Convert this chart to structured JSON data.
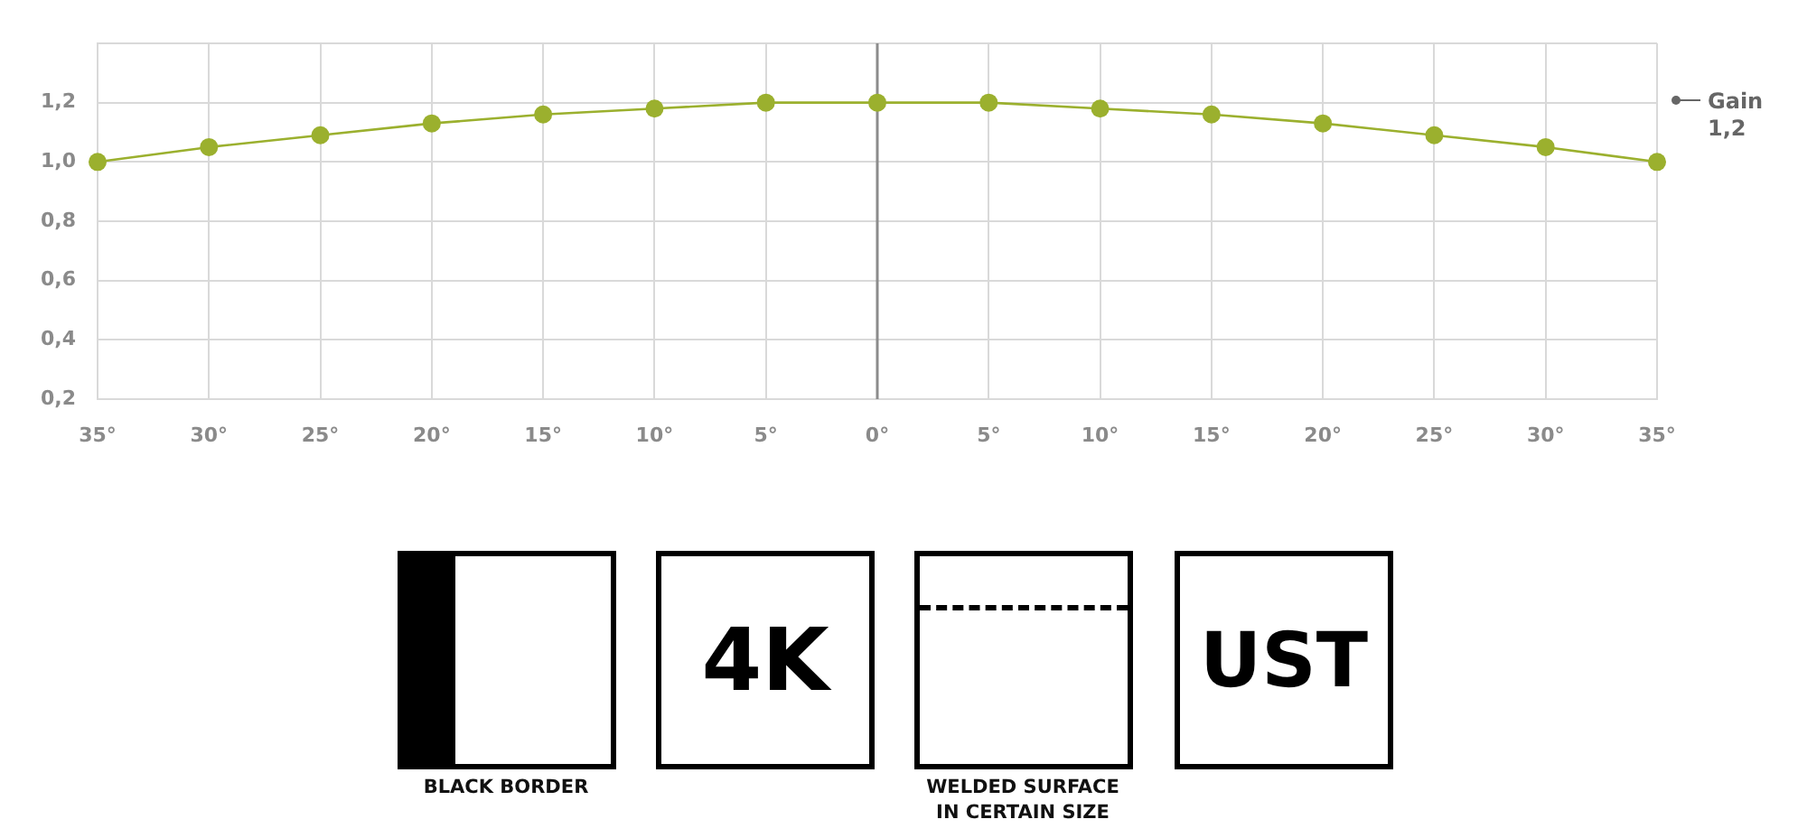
{
  "chart_data": {
    "type": "line",
    "categories": [
      "35°",
      "30°",
      "25°",
      "20°",
      "15°",
      "10°",
      "5°",
      "0°",
      "5°",
      "10°",
      "15°",
      "20°",
      "25°",
      "30°",
      "35°"
    ],
    "series": [
      {
        "color": "#9bb02e",
        "values": [
          1.0,
          1.05,
          1.09,
          1.13,
          1.16,
          1.18,
          1.2,
          1.2,
          1.2,
          1.18,
          1.16,
          1.13,
          1.09,
          1.05,
          1.0
        ]
      }
    ],
    "ylim": [
      0.2,
      1.4
    ],
    "yticks": [
      {
        "value": 0.2,
        "label": "0,2"
      },
      {
        "value": 0.4,
        "label": "0,4"
      },
      {
        "value": 0.6,
        "label": "0,6"
      },
      {
        "value": 0.8,
        "label": "0,8"
      },
      {
        "value": 1.0,
        "label": "1,0"
      },
      {
        "value": 1.2,
        "label": "1,2"
      },
      {
        "value": 1.4,
        "label": null
      }
    ],
    "grid": true,
    "legend": false,
    "marker": "circle",
    "line_style": "solid",
    "ref_lines": [
      {
        "axis": "x",
        "value": "0°",
        "color": "#8c8c8c"
      }
    ],
    "annotations": [
      "Gain 1,2",
      "BLACK BORDER",
      "4K",
      "WELDED SURFACE IN CERTAIN SIZE",
      "UST"
    ]
  }
}
